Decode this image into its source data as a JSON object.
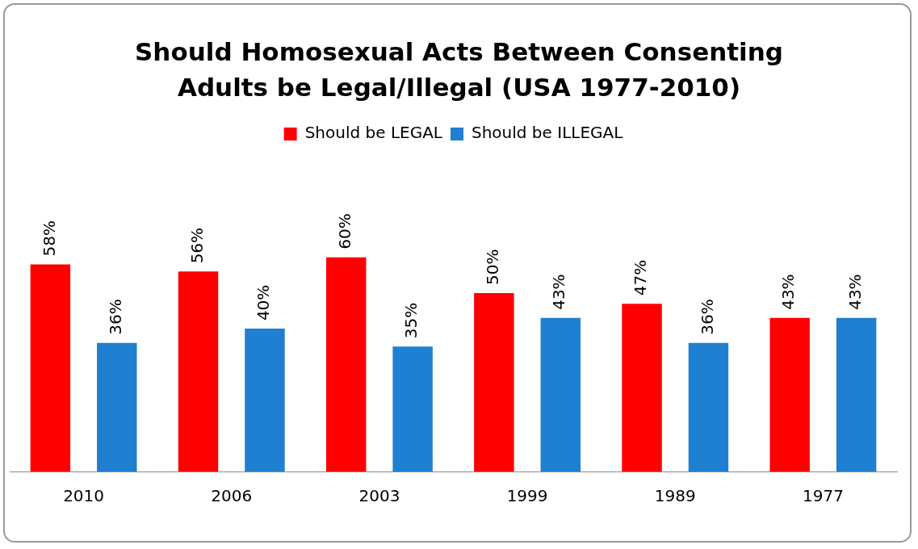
{
  "chart_data": {
    "type": "bar",
    "title": "Should Homosexual Acts Between Consenting Adults be Legal/Illegal (USA 1977-2010)",
    "categories": [
      "2010",
      "2006",
      "2003",
      "1999",
      "1989",
      "1977"
    ],
    "series": [
      {
        "name": "Should be LEGAL",
        "color": "#ff0000",
        "values": [
          58,
          56,
          60,
          50,
          47,
          43
        ],
        "value_labels": [
          "58%",
          "56%",
          "60%",
          "50%",
          "47%",
          "43%"
        ]
      },
      {
        "name": "Should be ILLEGAL",
        "color": "#1f7fd0",
        "values": [
          36,
          40,
          35,
          43,
          36,
          43
        ],
        "value_labels": [
          "36%",
          "40%",
          "35%",
          "43%",
          "36%",
          "43%"
        ]
      }
    ],
    "legend": "top",
    "grid": false
  }
}
